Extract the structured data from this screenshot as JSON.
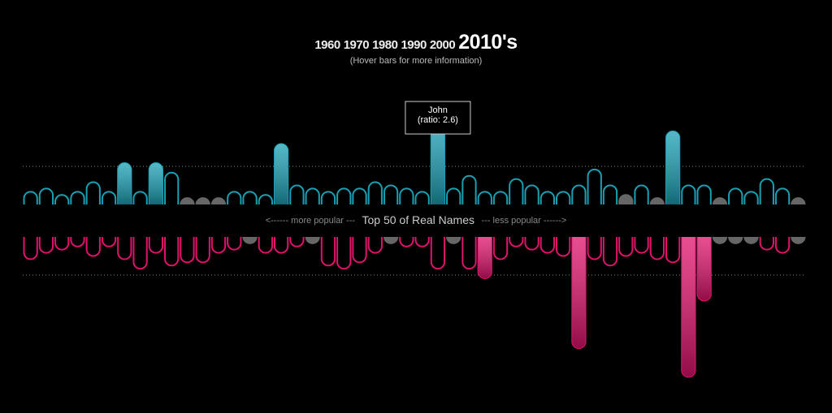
{
  "chart_data": {
    "type": "mirrored-bar",
    "decades": [
      "1960",
      "1970",
      "1980",
      "1990",
      "2000"
    ],
    "selected_decade": "2010's",
    "subtitle": "(Hover bars for more information)",
    "axis_label_left": "<------ more popular ---",
    "axis_label": "Top 50 of Real Names",
    "axis_label_right": "--- less popular ------>",
    "threshold": 1.2,
    "tooltip": {
      "name": "John",
      "ratio_label": "(ratio: 2.6)"
    },
    "series": [
      {
        "color": "#1aa0b4",
        "values": [
          0.4,
          0.5,
          0.3,
          0.4,
          0.7,
          0.4,
          1.3,
          0.4,
          1.3,
          1.0,
          0.2,
          0.2,
          0.2,
          0.4,
          0.4,
          0.3,
          1.9,
          0.6,
          0.5,
          0.4,
          0.5,
          0.5,
          0.7,
          0.6,
          0.5,
          0.4,
          2.6,
          0.5,
          0.9,
          0.4,
          0.4,
          0.8,
          0.6,
          0.4,
          0.4,
          0.6,
          1.1,
          0.6,
          0.3,
          0.6,
          0.2,
          2.3,
          0.6,
          0.6,
          0.2,
          0.5,
          0.4,
          0.8,
          0.5,
          0.2
        ],
        "colors": [
          "#1aa0b4",
          "#1aa0b4",
          "#1aa0b4",
          "#1aa0b4",
          "#1aa0b4",
          "#1aa0b4",
          "#1aa0b4",
          "#1aa0b4",
          "#1aa0b4",
          "#1aa0b4",
          "#666666",
          "#666666",
          "#666666",
          "#1aa0b4",
          "#1aa0b4",
          "#1aa0b4",
          "#1aa0b4",
          "#1aa0b4",
          "#1aa0b4",
          "#1aa0b4",
          "#1aa0b4",
          "#1aa0b4",
          "#1aa0b4",
          "#1aa0b4",
          "#1aa0b4",
          "#1aa0b4",
          "#1aa0b4",
          "#1aa0b4",
          "#1aa0b4",
          "#1aa0b4",
          "#1aa0b4",
          "#1aa0b4",
          "#1aa0b4",
          "#1aa0b4",
          "#1aa0b4",
          "#1aa0b4",
          "#1aa0b4",
          "#1aa0b4",
          "#666666",
          "#1aa0b4",
          "#666666",
          "#1aa0b4",
          "#1aa0b4",
          "#1aa0b4",
          "#666666",
          "#1aa0b4",
          "#1aa0b4",
          "#1aa0b4",
          "#1aa0b4",
          "#666666"
        ]
      },
      {
        "color": "#e0136c",
        "values": [
          0.7,
          0.5,
          0.4,
          0.3,
          0.6,
          0.3,
          0.7,
          1.0,
          0.5,
          0.9,
          0.8,
          0.8,
          0.5,
          0.4,
          0.2,
          0.5,
          0.5,
          0.3,
          0.2,
          0.9,
          1.0,
          0.8,
          0.5,
          0.2,
          0.3,
          0.3,
          1.0,
          0.2,
          1.0,
          1.3,
          0.7,
          0.3,
          0.4,
          0.5,
          0.6,
          3.5,
          0.7,
          0.9,
          0.6,
          0.5,
          0.7,
          0.8,
          4.4,
          2.0,
          0.2,
          0.2,
          0.2,
          0.4,
          0.5,
          0.2
        ],
        "colors": [
          "#e0136c",
          "#e0136c",
          "#e0136c",
          "#e0136c",
          "#e0136c",
          "#e0136c",
          "#e0136c",
          "#e0136c",
          "#e0136c",
          "#e0136c",
          "#e0136c",
          "#e0136c",
          "#e0136c",
          "#e0136c",
          "#666666",
          "#e0136c",
          "#e0136c",
          "#e0136c",
          "#666666",
          "#e0136c",
          "#e0136c",
          "#e0136c",
          "#e0136c",
          "#666666",
          "#e0136c",
          "#e0136c",
          "#e0136c",
          "#666666",
          "#e0136c",
          "#e0136c",
          "#e0136c",
          "#e0136c",
          "#e0136c",
          "#e0136c",
          "#e0136c",
          "#e0136c",
          "#e0136c",
          "#e0136c",
          "#e0136c",
          "#e0136c",
          "#e0136c",
          "#e0136c",
          "#e0136c",
          "#e0136c",
          "#666666",
          "#666666",
          "#666666",
          "#e0136c",
          "#e0136c",
          "#666666"
        ]
      }
    ]
  }
}
